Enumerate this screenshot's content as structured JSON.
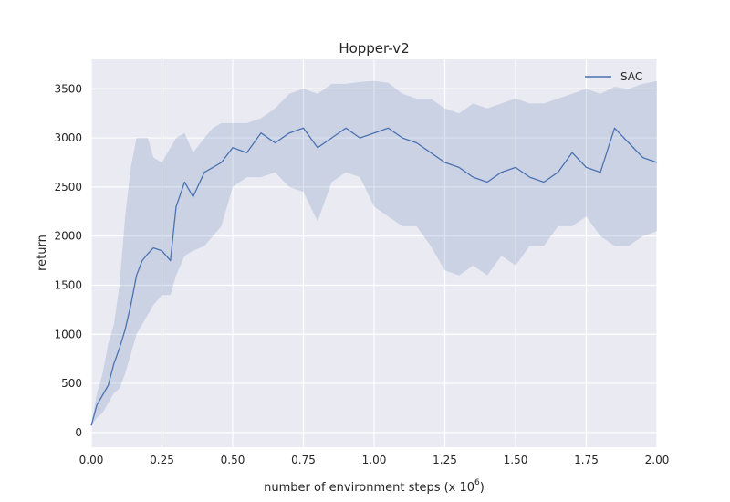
{
  "chart_data": {
    "type": "line",
    "title": "Hopper-v2",
    "xlabel": "number of environment steps (x 10",
    "xlabel_sup": "6",
    "xlabel_close": ")",
    "ylabel": "return",
    "xlim": [
      0,
      2.0
    ],
    "ylim": [
      -150,
      3800
    ],
    "xticks": [
      {
        "value": 0.0,
        "label": "0.00"
      },
      {
        "value": 0.25,
        "label": "0.25"
      },
      {
        "value": 0.5,
        "label": "0.50"
      },
      {
        "value": 0.75,
        "label": "0.75"
      },
      {
        "value": 1.0,
        "label": "1.00"
      },
      {
        "value": 1.25,
        "label": "1.25"
      },
      {
        "value": 1.5,
        "label": "1.50"
      },
      {
        "value": 1.75,
        "label": "1.75"
      },
      {
        "value": 2.0,
        "label": "2.00"
      }
    ],
    "yticks": [
      {
        "value": 0,
        "label": "0"
      },
      {
        "value": 500,
        "label": "500"
      },
      {
        "value": 1000,
        "label": "1000"
      },
      {
        "value": 1500,
        "label": "1500"
      },
      {
        "value": 2000,
        "label": "2000"
      },
      {
        "value": 2500,
        "label": "2500"
      },
      {
        "value": 3000,
        "label": "3000"
      },
      {
        "value": 3500,
        "label": "3500"
      }
    ],
    "grid": true,
    "legend_position": "top-right",
    "colors": {
      "line": "#4c72b0",
      "band": "#4c72b0",
      "plot_background": "#eaeaf2",
      "grid": "#ffffff"
    },
    "series": [
      {
        "name": "SAC",
        "x": [
          0.0,
          0.02,
          0.04,
          0.06,
          0.08,
          0.1,
          0.12,
          0.14,
          0.16,
          0.18,
          0.2,
          0.22,
          0.25,
          0.28,
          0.3,
          0.33,
          0.36,
          0.4,
          0.43,
          0.46,
          0.5,
          0.55,
          0.6,
          0.65,
          0.7,
          0.75,
          0.8,
          0.85,
          0.9,
          0.95,
          1.0,
          1.05,
          1.1,
          1.15,
          1.2,
          1.25,
          1.3,
          1.35,
          1.4,
          1.45,
          1.5,
          1.55,
          1.6,
          1.65,
          1.7,
          1.75,
          1.8,
          1.85,
          1.9,
          1.95,
          2.0
        ],
        "mean": [
          70,
          280,
          380,
          480,
          700,
          860,
          1050,
          1300,
          1600,
          1750,
          1820,
          1880,
          1850,
          1750,
          2300,
          2550,
          2400,
          2650,
          2700,
          2750,
          2900,
          2850,
          3050,
          2950,
          3050,
          3100,
          2900,
          3000,
          3100,
          3000,
          3050,
          3100,
          3000,
          2950,
          2850,
          2750,
          2700,
          2600,
          2550,
          2650,
          2700,
          2600,
          2550,
          2650,
          2850,
          2700,
          2650,
          3100,
          2950,
          2800,
          2750
        ],
        "lower": [
          70,
          150,
          200,
          300,
          400,
          450,
          600,
          800,
          1000,
          1100,
          1200,
          1300,
          1400,
          1400,
          1600,
          1800,
          1850,
          1900,
          2000,
          2100,
          2500,
          2600,
          2600,
          2650,
          2500,
          2450,
          2150,
          2550,
          2650,
          2600,
          2300,
          2200,
          2100,
          2100,
          1900,
          1650,
          1600,
          1700,
          1600,
          1800,
          1700,
          1900,
          1900,
          2100,
          2100,
          2200,
          2000,
          1900,
          1900,
          2000,
          2050
        ],
        "upper": [
          70,
          400,
          600,
          900,
          1100,
          1500,
          2200,
          2700,
          3000,
          3000,
          3000,
          2800,
          2750,
          2900,
          3000,
          3050,
          2850,
          3000,
          3100,
          3150,
          3150,
          3150,
          3200,
          3300,
          3450,
          3500,
          3450,
          3550,
          3550,
          3570,
          3580,
          3560,
          3450,
          3400,
          3400,
          3300,
          3250,
          3350,
          3300,
          3350,
          3400,
          3350,
          3350,
          3400,
          3450,
          3500,
          3450,
          3520,
          3500,
          3550,
          3580
        ]
      }
    ]
  }
}
